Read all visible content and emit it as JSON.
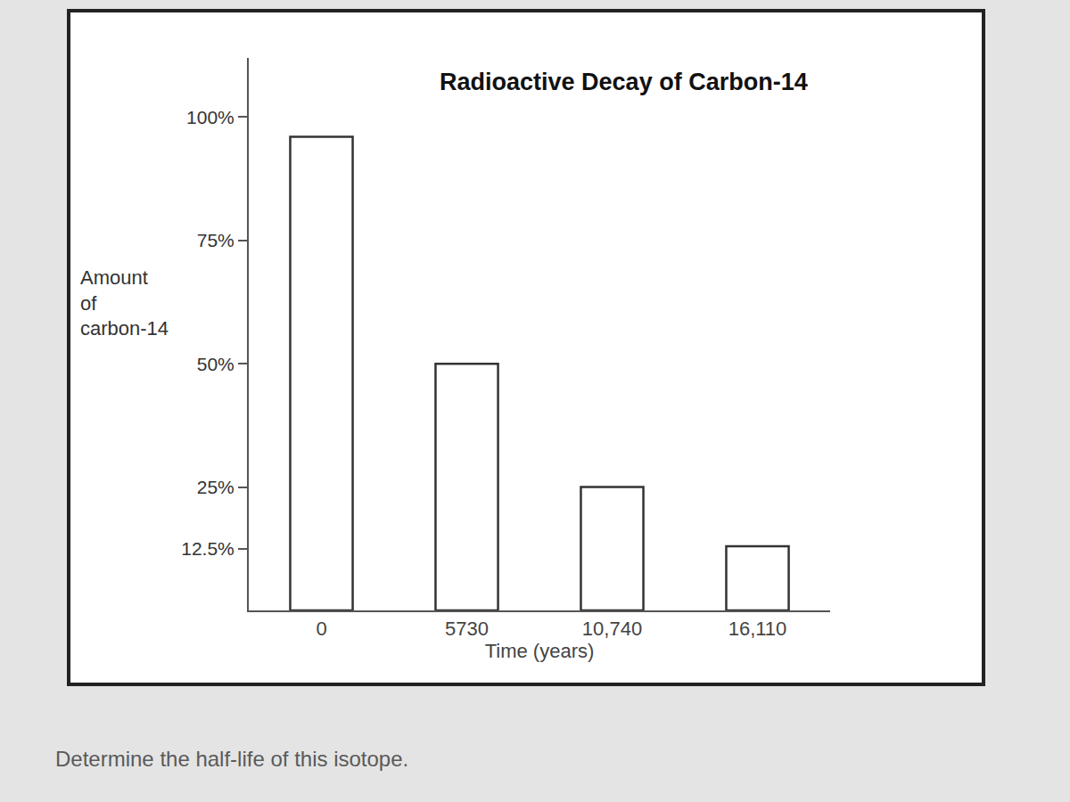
{
  "chart_data": {
    "type": "bar",
    "title": "Radioactive Decay of Carbon-14",
    "x_label": "Time (years)",
    "y_label": "Amount of carbon-14",
    "categories": [
      "0",
      "5730",
      "10,740",
      "16,110"
    ],
    "values": [
      96,
      50,
      25,
      13
    ],
    "color": "#ffffff",
    "ylim": [
      0,
      112
    ],
    "yticks": [
      {
        "value": 12.5,
        "label": "12.5%"
      },
      {
        "value": 25,
        "label": "25%"
      },
      {
        "value": 50,
        "label": "50%"
      },
      {
        "value": 75,
        "label": "75%"
      },
      {
        "value": 100,
        "label": "100%"
      }
    ],
    "grid": false,
    "annotations": [
      "Determine the half-life of this isotope."
    ]
  }
}
